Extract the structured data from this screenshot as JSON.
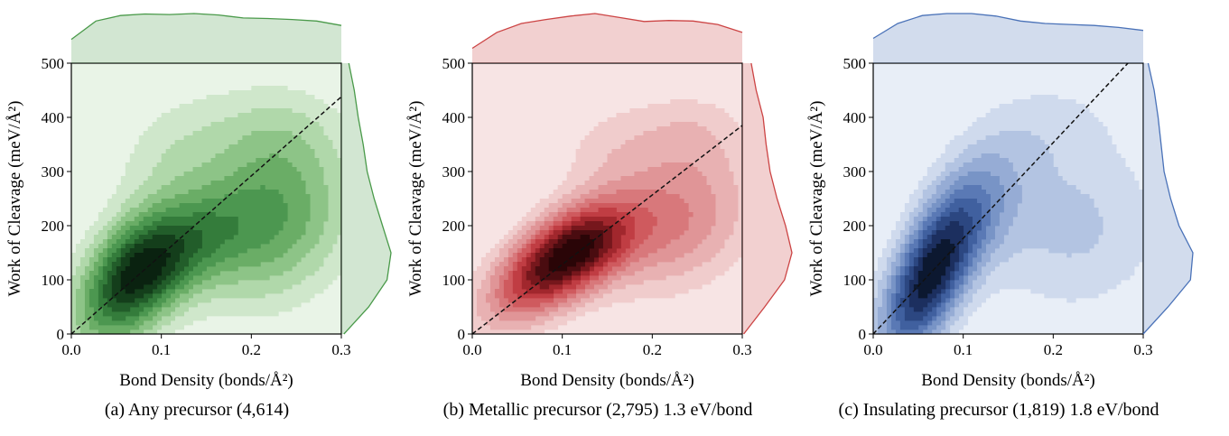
{
  "chart_data": [
    {
      "type": "kde-joint",
      "caption": "(a) Any precursor (4,614)",
      "xlabel": "Bond Density (bonds/Å²)",
      "ylabel": "Work of Cleavage (meV/Å²)",
      "xlim": [
        0,
        0.3
      ],
      "ylim": [
        0,
        500
      ],
      "xticks": [
        "0.0",
        "0.1",
        "0.2",
        "0.3"
      ],
      "yticks": [
        "0",
        "100",
        "200",
        "300",
        "400",
        "500"
      ],
      "color": "#4a9a4a",
      "palette": [
        "#e9f4e7",
        "#cfe7cb",
        "#b0d8aa",
        "#8dc487",
        "#6aad66",
        "#4c9750",
        "#347c3b",
        "#225d2a",
        "#143e1b",
        "#0a2210"
      ],
      "fit_line": {
        "x": [
          0,
          0.3
        ],
        "y": [
          0,
          438
        ]
      },
      "peaks": [
        {
          "x": 0.065,
          "y": 100,
          "sx": 0.04,
          "sy": 82,
          "rho": 0.45,
          "w": 1.0
        },
        {
          "x": 0.12,
          "y": 155,
          "sx": 0.05,
          "sy": 70,
          "rho": 0.5,
          "w": 0.55
        },
        {
          "x": 0.22,
          "y": 200,
          "sx": 0.06,
          "sy": 95,
          "rho": 0.2,
          "w": 0.6
        },
        {
          "x": 0.23,
          "y": 360,
          "sx": 0.05,
          "sy": 70,
          "rho": 0.0,
          "w": 0.25
        },
        {
          "x": 0.12,
          "y": 330,
          "sx": 0.05,
          "sy": 80,
          "rho": 0.2,
          "w": 0.2
        }
      ],
      "marginal_x": [
        0.48,
        0.85,
        0.96,
        0.99,
        0.98,
        1.0,
        0.97,
        0.91,
        0.9,
        0.88,
        0.85,
        0.76
      ],
      "marginal_y": [
        0.05,
        0.55,
        0.92,
        1.0,
        0.83,
        0.66,
        0.52,
        0.44,
        0.34,
        0.26,
        0.15
      ]
    },
    {
      "type": "kde-joint",
      "caption": "(b) Metallic precursor (2,795) 1.3 eV/bond",
      "xlabel": "Bond Density (bonds/Å²)",
      "ylabel": "Work of Cleavage (meV/Å²)",
      "xlim": [
        0,
        0.3
      ],
      "ylim": [
        0,
        500
      ],
      "xticks": [
        "0.0",
        "0.1",
        "0.2",
        "0.3"
      ],
      "yticks": [
        "0",
        "100",
        "200",
        "300",
        "400",
        "500"
      ],
      "color": "#cc4444",
      "palette": [
        "#f7e4e4",
        "#f0cccc",
        "#e8b1b2",
        "#e09597",
        "#d8787b",
        "#cf5a5e",
        "#c03d43",
        "#a1272d",
        "#76171c",
        "#4a0c10",
        "#2a0507"
      ],
      "fit_line": {
        "x": [
          0,
          0.3
        ],
        "y": [
          0,
          385
        ]
      },
      "peaks": [
        {
          "x": 0.08,
          "y": 115,
          "sx": 0.045,
          "sy": 65,
          "rho": 0.55,
          "w": 1.0
        },
        {
          "x": 0.125,
          "y": 165,
          "sx": 0.04,
          "sy": 55,
          "rho": 0.35,
          "w": 0.8
        },
        {
          "x": 0.22,
          "y": 210,
          "sx": 0.06,
          "sy": 85,
          "rho": 0.2,
          "w": 0.55
        },
        {
          "x": 0.24,
          "y": 370,
          "sx": 0.045,
          "sy": 55,
          "rho": 0.0,
          "w": 0.2
        },
        {
          "x": 0.15,
          "y": 340,
          "sx": 0.04,
          "sy": 60,
          "rho": 0.1,
          "w": 0.15
        }
      ],
      "marginal_x": [
        0.3,
        0.62,
        0.8,
        0.88,
        0.95,
        1.0,
        0.92,
        0.84,
        0.86,
        0.85,
        0.78,
        0.62
      ],
      "marginal_y": [
        0.03,
        0.45,
        0.85,
        1.0,
        0.87,
        0.7,
        0.56,
        0.48,
        0.42,
        0.28,
        0.18
      ]
    },
    {
      "type": "kde-joint",
      "caption": "(c) Insulating precursor (1,819) 1.8 eV/bond",
      "xlabel": "Bond Density (bonds/Å²)",
      "ylabel": "Work of Cleavage (meV/Å²)",
      "xlim": [
        0,
        0.3
      ],
      "ylim": [
        0,
        500
      ],
      "xticks": [
        "0.0",
        "0.1",
        "0.2",
        "0.3"
      ],
      "yticks": [
        "0",
        "100",
        "200",
        "300",
        "400",
        "500"
      ],
      "color": "#4a72b8",
      "palette": [
        "#e8eef7",
        "#cfdaed",
        "#b3c4e2",
        "#96acd5",
        "#7894c6",
        "#5a79b5",
        "#40609f",
        "#2c4781",
        "#1c2f5f",
        "#0c1830"
      ],
      "fit_line": {
        "x": [
          0,
          0.3
        ],
        "y": [
          0,
          530
        ]
      },
      "peaks": [
        {
          "x": 0.06,
          "y": 100,
          "sx": 0.035,
          "sy": 95,
          "rho": 0.6,
          "w": 1.0
        },
        {
          "x": 0.11,
          "y": 230,
          "sx": 0.04,
          "sy": 90,
          "rho": 0.4,
          "w": 0.35
        },
        {
          "x": 0.22,
          "y": 200,
          "sx": 0.07,
          "sy": 110,
          "rho": 0.0,
          "w": 0.22
        },
        {
          "x": 0.2,
          "y": 390,
          "sx": 0.05,
          "sy": 60,
          "rho": 0.0,
          "w": 0.1
        }
      ],
      "marginal_x": [
        0.5,
        0.8,
        0.96,
        1.0,
        1.0,
        0.95,
        0.85,
        0.8,
        0.78,
        0.76,
        0.72,
        0.66
      ],
      "marginal_y": [
        0.0,
        0.5,
        0.95,
        1.0,
        0.72,
        0.55,
        0.42,
        0.36,
        0.3,
        0.22,
        0.1
      ]
    }
  ]
}
